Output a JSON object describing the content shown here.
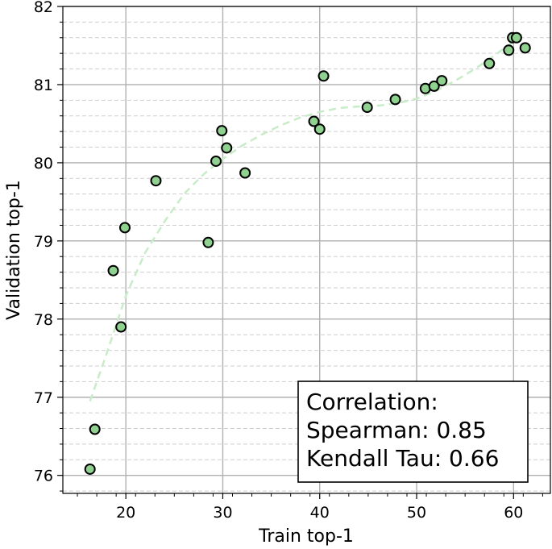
{
  "chart_data": {
    "type": "scatter",
    "title": "",
    "xlabel": "Train top-1",
    "ylabel": "Validation top-1",
    "xlim": [
      13.5,
      63.8
    ],
    "ylim": [
      75.77,
      82.0
    ],
    "xticks": [
      20,
      30,
      40,
      50,
      60
    ],
    "yticks": [
      76,
      77,
      78,
      79,
      80,
      81,
      82
    ],
    "xtick_labels": [
      "20",
      "30",
      "40",
      "50",
      "60"
    ],
    "ytick_labels": [
      "76",
      "77",
      "78",
      "79",
      "80",
      "81",
      "82"
    ],
    "grid": true,
    "minor_grid_y": true,
    "point_color": "#8fd18f",
    "point_edge": "#000000",
    "trend_color": "#c8ecc8",
    "points": [
      {
        "x": 16.3,
        "y": 76.08
      },
      {
        "x": 16.8,
        "y": 76.59
      },
      {
        "x": 18.7,
        "y": 78.62
      },
      {
        "x": 19.5,
        "y": 77.9
      },
      {
        "x": 19.9,
        "y": 79.17
      },
      {
        "x": 23.1,
        "y": 79.77
      },
      {
        "x": 28.5,
        "y": 78.98
      },
      {
        "x": 29.3,
        "y": 80.02
      },
      {
        "x": 29.9,
        "y": 80.41
      },
      {
        "x": 30.4,
        "y": 80.19
      },
      {
        "x": 32.3,
        "y": 79.87
      },
      {
        "x": 39.4,
        "y": 80.53
      },
      {
        "x": 40.0,
        "y": 80.43
      },
      {
        "x": 40.4,
        "y": 81.11
      },
      {
        "x": 44.9,
        "y": 80.71
      },
      {
        "x": 47.8,
        "y": 80.81
      },
      {
        "x": 50.9,
        "y": 80.95
      },
      {
        "x": 51.8,
        "y": 80.98
      },
      {
        "x": 52.6,
        "y": 81.05
      },
      {
        "x": 57.5,
        "y": 81.27
      },
      {
        "x": 59.5,
        "y": 81.44
      },
      {
        "x": 59.9,
        "y": 81.6
      },
      {
        "x": 60.3,
        "y": 81.6
      },
      {
        "x": 61.2,
        "y": 81.47
      }
    ],
    "trend": {
      "x": [
        16.3,
        18,
        20,
        22,
        24,
        26,
        28,
        30,
        32,
        34,
        36,
        38,
        40,
        42,
        44,
        46,
        48,
        50,
        52,
        54,
        56,
        58,
        60,
        61.2
      ],
      "y": [
        76.95,
        77.55,
        78.3,
        78.85,
        79.25,
        79.6,
        79.85,
        80.05,
        80.22,
        80.36,
        80.48,
        80.58,
        80.65,
        80.7,
        80.72,
        80.73,
        80.76,
        80.82,
        80.92,
        81.05,
        81.2,
        81.37,
        81.55,
        81.68
      ]
    },
    "legend": {
      "placement": "bottom-right",
      "lines": [
        "Correlation:",
        "Spearman: 0.85",
        "Kendall Tau: 0.66"
      ]
    }
  }
}
